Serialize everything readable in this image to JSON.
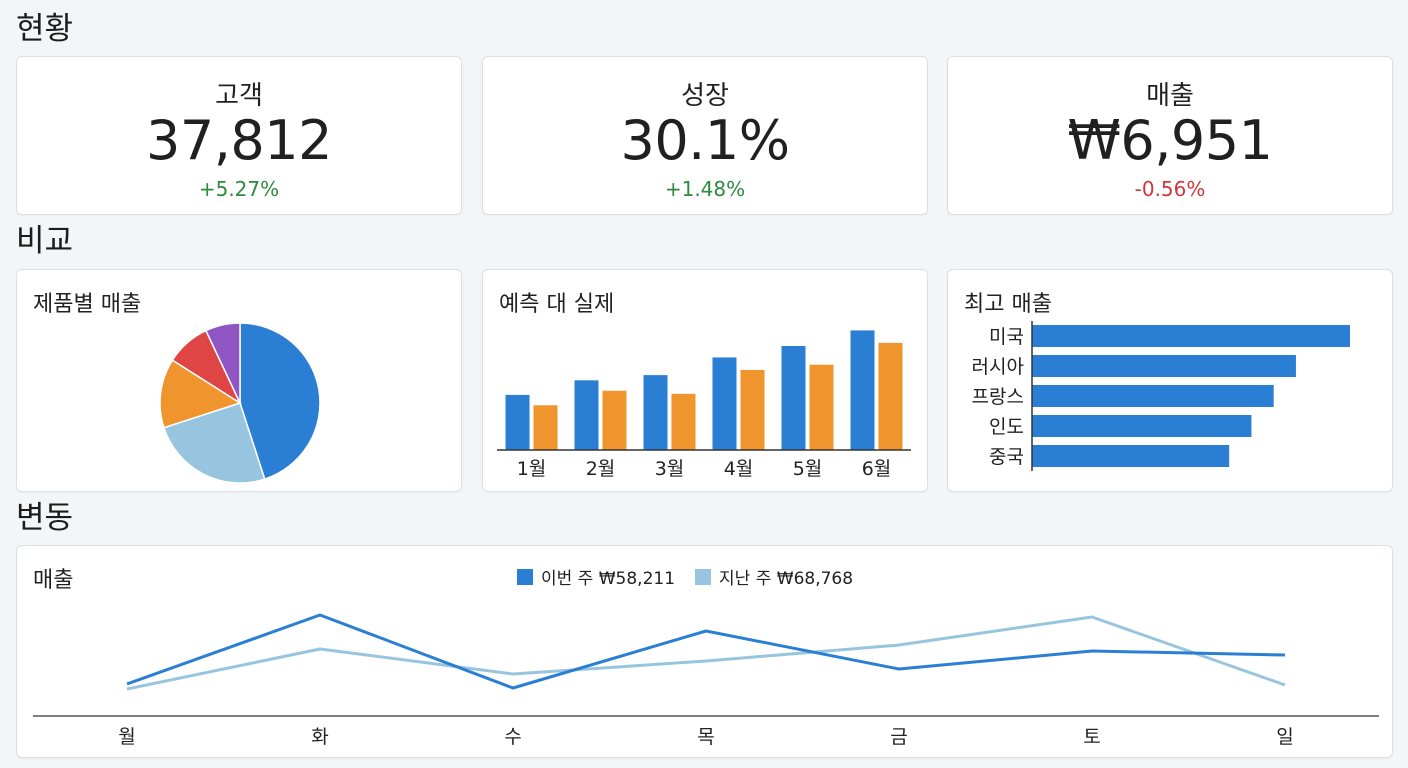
{
  "sections": {
    "status": "현황",
    "compare": "비교",
    "change": "변동"
  },
  "kpis": [
    {
      "label": "고객",
      "value": "37,812",
      "delta": "+5.27%",
      "trend": "positive"
    },
    {
      "label": "성장",
      "value": "30.1%",
      "delta": "+1.48%",
      "trend": "positive"
    },
    {
      "label": "매출",
      "value": "₩6,951",
      "delta": "-0.56%",
      "trend": "negative"
    }
  ],
  "colors": {
    "blue": "#2a7fd4",
    "orange": "#f0952e",
    "light_blue": "#97c5e0",
    "red": "#e04545",
    "purple": "#8f55c2",
    "positive": "#2e8b3e",
    "negative": "#d0373a"
  },
  "chart_data": [
    {
      "type": "pie",
      "title": "제품별 매출",
      "slices": [
        {
          "value": 45,
          "color": "#2a7fd4"
        },
        {
          "value": 25,
          "color": "#97c5e0"
        },
        {
          "value": 14,
          "color": "#f0952e"
        },
        {
          "value": 9,
          "color": "#e04545"
        },
        {
          "value": 7,
          "color": "#8f55c2"
        }
      ]
    },
    {
      "type": "bar",
      "title": "예측 대 실제",
      "categories": [
        "1월",
        "2월",
        "3월",
        "4월",
        "5월",
        "6월"
      ],
      "series": [
        {
          "values": [
            53,
            67,
            72,
            89,
            100,
            115
          ],
          "color": "#2a7fd4"
        },
        {
          "values": [
            43,
            57,
            54,
            77,
            82,
            103
          ],
          "color": "#f0952e"
        }
      ],
      "ylim": [
        0,
        125
      ]
    },
    {
      "type": "bar",
      "orientation": "horizontal",
      "title": "최고 매출",
      "categories": [
        "미국",
        "러시아",
        "프랑스",
        "인도",
        "중국"
      ],
      "values": [
        100,
        83,
        76,
        69,
        62
      ],
      "color": "#2a7fd4",
      "xlim": [
        0,
        100
      ]
    },
    {
      "type": "line",
      "title": "매출",
      "categories": [
        "월",
        "화",
        "수",
        "목",
        "금",
        "토",
        "일"
      ],
      "series": [
        {
          "name": "이번 주 ₩58,211",
          "values": [
            32,
            101,
            28,
            85,
            47,
            65,
            61
          ],
          "color": "#2a7fd4"
        },
        {
          "name": "지난 주 ₩68,768",
          "values": [
            27,
            67,
            42,
            55,
            71,
            99,
            31
          ],
          "color": "#97c5e0"
        }
      ],
      "ylim": [
        0,
        130
      ]
    }
  ]
}
